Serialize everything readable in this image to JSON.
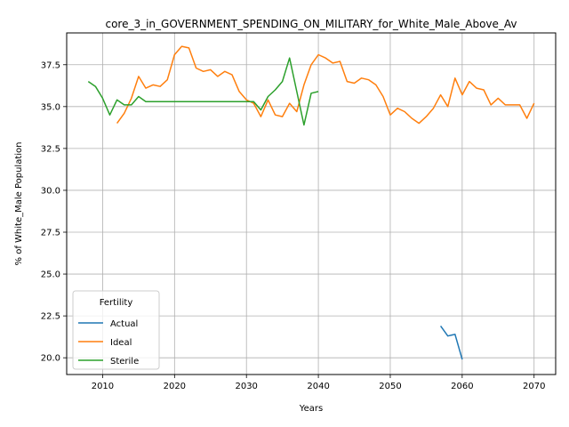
{
  "chart_data": {
    "type": "line",
    "title": "core_3_in_GOVERNMENT_SPENDING_ON_MILITARY_for_White_Male_Above_Av",
    "xlabel": "Years",
    "ylabel": "% of White_Male Population",
    "xlim": [
      2005,
      2073
    ],
    "ylim": [
      19.0,
      39.4
    ],
    "xticks": [
      2010,
      2020,
      2030,
      2040,
      2050,
      2060,
      2070
    ],
    "yticks": [
      20.0,
      22.5,
      25.0,
      27.5,
      30.0,
      32.5,
      35.0,
      37.5
    ],
    "grid": true,
    "legend": {
      "title": "Fertility",
      "placement": "lower-left"
    },
    "series": [
      {
        "name": "Actual",
        "color": "#1f77b4",
        "x": [
          2057,
          2058,
          2059,
          2060
        ],
        "y": [
          21.9,
          21.3,
          21.4,
          19.9
        ]
      },
      {
        "name": "Ideal",
        "color": "#ff7f0e",
        "x": [
          2012,
          2013,
          2014,
          2015,
          2016,
          2017,
          2018,
          2019,
          2020,
          2021,
          2022,
          2023,
          2024,
          2025,
          2026,
          2027,
          2028,
          2029,
          2030,
          2031,
          2032,
          2033,
          2034,
          2035,
          2036,
          2037,
          2038,
          2039,
          2040,
          2041,
          2042,
          2043,
          2044,
          2045,
          2046,
          2047,
          2048,
          2049,
          2050,
          2051,
          2052,
          2053,
          2054,
          2055,
          2056,
          2057,
          2058,
          2059,
          2060,
          2061,
          2062,
          2063,
          2064,
          2065,
          2066,
          2067,
          2068,
          2069,
          2070
        ],
        "y": [
          34.0,
          34.6,
          35.5,
          36.8,
          36.1,
          36.3,
          36.2,
          36.6,
          38.1,
          38.6,
          38.5,
          37.3,
          37.1,
          37.2,
          36.8,
          37.1,
          36.9,
          35.9,
          35.4,
          35.2,
          34.4,
          35.4,
          34.5,
          34.4,
          35.2,
          34.7,
          36.3,
          37.5,
          38.1,
          37.9,
          37.6,
          37.7,
          36.5,
          36.4,
          36.7,
          36.6,
          36.3,
          35.6,
          34.5,
          34.9,
          34.7,
          34.3,
          34.0,
          34.4,
          34.9,
          35.7,
          35.0,
          36.7,
          35.7,
          36.5,
          36.1,
          36.0,
          35.1,
          35.5,
          35.1,
          35.1,
          35.1,
          34.3,
          35.2
        ]
      },
      {
        "name": "Sterile",
        "color": "#2ca02c",
        "x": [
          2008,
          2009,
          2010,
          2011,
          2012,
          2013,
          2014,
          2015,
          2016,
          2017,
          2018,
          2019,
          2020,
          2021,
          2022,
          2023,
          2024,
          2025,
          2026,
          2027,
          2028,
          2029,
          2030,
          2031,
          2032,
          2033,
          2034,
          2035,
          2036,
          2037,
          2038,
          2039,
          2040
        ],
        "y": [
          36.5,
          36.2,
          35.5,
          34.5,
          35.4,
          35.1,
          35.1,
          35.6,
          35.3,
          35.3,
          35.3,
          35.3,
          35.3,
          35.3,
          35.3,
          35.3,
          35.3,
          35.3,
          35.3,
          35.3,
          35.3,
          35.3,
          35.3,
          35.3,
          34.8,
          35.6,
          36.0,
          36.5,
          37.9,
          35.9,
          33.9,
          35.8,
          35.9
        ]
      }
    ]
  }
}
